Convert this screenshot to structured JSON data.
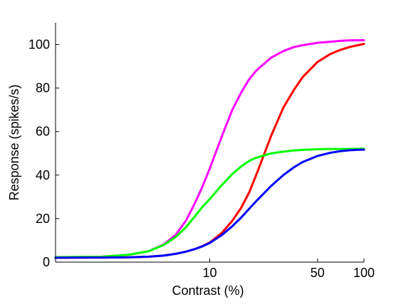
{
  "chart_data": {
    "type": "line",
    "title": "",
    "xlabel": "Contrast (%)",
    "ylabel": "Response (spikes/s)",
    "x_scale": "log",
    "xlim": [
      1,
      100
    ],
    "ylim": [
      0,
      110
    ],
    "grid": false,
    "legend": "none",
    "x_ticks": [
      {
        "value": 10,
        "label": "10"
      },
      {
        "value": 50,
        "label": "50"
      },
      {
        "value": 100,
        "label": "100"
      }
    ],
    "y_ticks": [
      {
        "value": 0,
        "label": "0"
      },
      {
        "value": 20,
        "label": "20"
      },
      {
        "value": 40,
        "label": "40"
      },
      {
        "value": 60,
        "label": "60"
      },
      {
        "value": 80,
        "label": "80"
      },
      {
        "value": 100,
        "label": "100"
      }
    ],
    "series": [
      {
        "color": "#ff00ff",
        "x": [
          1,
          2,
          3,
          4,
          5,
          6,
          7,
          8,
          9,
          10,
          12,
          14,
          16,
          18,
          20,
          25,
          30,
          35,
          40,
          50,
          60,
          70,
          80,
          90,
          100
        ],
        "y": [
          2.3,
          2.5,
          3.4,
          5.0,
          8.0,
          12.5,
          19,
          27,
          35,
          43,
          58,
          70,
          78,
          84,
          88,
          94,
          97,
          98.8,
          99.7,
          100.8,
          101.3,
          101.7,
          101.9,
          102.0,
          102.0
        ]
      },
      {
        "color": "#ff0000",
        "x": [
          1,
          2,
          3,
          4,
          5,
          6,
          7,
          8,
          9,
          10,
          12,
          14,
          16,
          18,
          20,
          25,
          30,
          35,
          40,
          50,
          60,
          70,
          80,
          90,
          100
        ],
        "y": [
          2.0,
          2.1,
          2.2,
          2.5,
          3.0,
          3.8,
          4.8,
          6.0,
          7.4,
          9.0,
          13.5,
          19,
          25,
          32,
          40,
          58,
          71,
          79,
          85,
          92,
          95.5,
          97.5,
          98.8,
          99.6,
          100.3
        ]
      },
      {
        "color": "#00ff00",
        "x": [
          1,
          2,
          3,
          4,
          5,
          6,
          7,
          8,
          9,
          10,
          12,
          14,
          16,
          18,
          20,
          25,
          30,
          35,
          40,
          50,
          60,
          70,
          80,
          90,
          100
        ],
        "y": [
          2.3,
          2.5,
          3.4,
          5.0,
          7.8,
          11.5,
          16,
          21,
          25.5,
          29,
          35.5,
          40.5,
          44,
          46.5,
          48,
          50,
          50.8,
          51.3,
          51.6,
          51.9,
          52.0,
          52.0,
          52.0,
          52.1,
          52.1
        ]
      },
      {
        "color": "#0000ff",
        "x": [
          1,
          2,
          3,
          4,
          5,
          6,
          7,
          8,
          9,
          10,
          12,
          14,
          16,
          18,
          20,
          25,
          30,
          35,
          40,
          50,
          60,
          70,
          80,
          90,
          100
        ],
        "y": [
          2.0,
          2.1,
          2.2,
          2.5,
          3.0,
          3.8,
          4.8,
          6.0,
          7.3,
          8.8,
          12.5,
          16.5,
          20.5,
          24.5,
          28,
          35,
          40,
          43.5,
          46,
          48.8,
          50.2,
          51,
          51.4,
          51.6,
          51.7
        ]
      }
    ]
  }
}
